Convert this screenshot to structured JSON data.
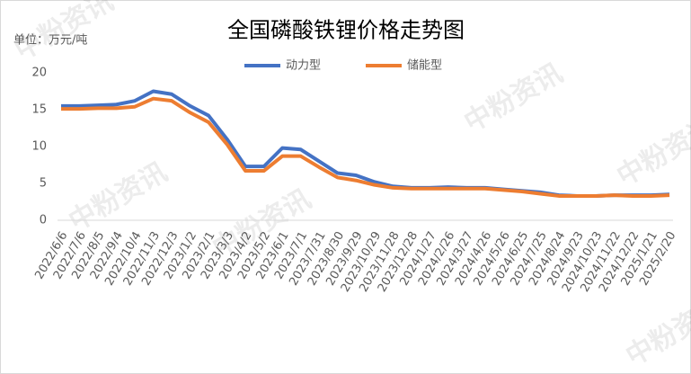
{
  "chart_data": {
    "type": "line",
    "title": "全国磷酸铁锂价格走势图",
    "y_label": "单位：万元/吨",
    "watermark": "中粉资讯",
    "categories": [
      "2022/6/6",
      "2022/7/6",
      "2022/8/5",
      "2022/9/4",
      "2022/10/4",
      "2022/11/3",
      "2022/12/3",
      "2023/1/2",
      "2023/2/1",
      "2023/3/3",
      "2023/4/2",
      "2023/5/2",
      "2023/6/1",
      "2023/7/1",
      "2023/7/31",
      "2023/8/30",
      "2023/9/29",
      "2023/10/29",
      "2023/11/28",
      "2023/12/28",
      "2024/1/27",
      "2024/2/26",
      "2024/3/27",
      "2024/4/26",
      "2024/5/26",
      "2024/6/25",
      "2024/7/25",
      "2024/8/24",
      "2024/9/23",
      "2024/10/23",
      "2024/11/22",
      "2024/12/22",
      "2025/1/21",
      "2025/2/20"
    ],
    "series": [
      {
        "name": "动力型",
        "color": "#4472c4",
        "values": [
          15.5,
          15.5,
          15.6,
          15.7,
          16.2,
          17.5,
          17.1,
          15.5,
          14.2,
          11.0,
          7.3,
          7.3,
          9.8,
          9.6,
          8.0,
          6.4,
          6.1,
          5.2,
          4.6,
          4.4,
          4.4,
          4.5,
          4.4,
          4.4,
          4.2,
          4.0,
          3.8,
          3.4,
          3.3,
          3.3,
          3.4,
          3.4,
          3.4,
          3.5
        ]
      },
      {
        "name": "储能型",
        "color": "#ed7d31",
        "values": [
          15.1,
          15.1,
          15.2,
          15.2,
          15.4,
          16.5,
          16.2,
          14.6,
          13.3,
          10.3,
          6.7,
          6.7,
          8.7,
          8.7,
          7.2,
          5.8,
          5.4,
          4.8,
          4.4,
          4.3,
          4.3,
          4.3,
          4.3,
          4.3,
          4.1,
          3.9,
          3.6,
          3.3,
          3.3,
          3.3,
          3.4,
          3.3,
          3.3,
          3.4
        ]
      }
    ],
    "ylim": [
      0,
      20
    ],
    "yticks": [
      0,
      5,
      10,
      15,
      20
    ],
    "grid": false,
    "legend": "top"
  }
}
